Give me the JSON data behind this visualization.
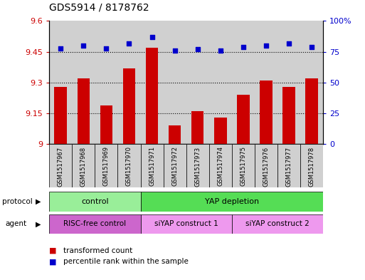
{
  "title": "GDS5914 / 8178762",
  "samples": [
    "GSM1517967",
    "GSM1517968",
    "GSM1517969",
    "GSM1517970",
    "GSM1517971",
    "GSM1517972",
    "GSM1517973",
    "GSM1517974",
    "GSM1517975",
    "GSM1517976",
    "GSM1517977",
    "GSM1517978"
  ],
  "transformed_counts": [
    9.28,
    9.32,
    9.19,
    9.37,
    9.47,
    9.09,
    9.16,
    9.13,
    9.24,
    9.31,
    9.28,
    9.32
  ],
  "percentile_ranks": [
    78,
    80,
    78,
    82,
    87,
    76,
    77,
    76,
    79,
    80,
    82,
    79
  ],
  "ylim_left": [
    9.0,
    9.6
  ],
  "ylim_right": [
    0,
    100
  ],
  "yticks_left": [
    9.0,
    9.15,
    9.3,
    9.45,
    9.6
  ],
  "ytick_labels_left": [
    "9",
    "9.15",
    "9.3",
    "9.45",
    "9.6"
  ],
  "yticks_right": [
    0,
    25,
    50,
    75,
    100
  ],
  "ytick_labels_right": [
    "0",
    "25",
    "50",
    "75",
    "100%"
  ],
  "hlines": [
    9.15,
    9.3,
    9.45
  ],
  "bar_color": "#cc0000",
  "dot_color": "#0000cc",
  "bar_width": 0.55,
  "protocol_color_control": "#99ee99",
  "protocol_color_yap": "#55dd55",
  "agent_color_dark": "#cc66cc",
  "agent_color_light": "#ee99ee",
  "sample_bg_color": "#d0d0d0",
  "legend_items": [
    "transformed count",
    "percentile rank within the sample"
  ]
}
